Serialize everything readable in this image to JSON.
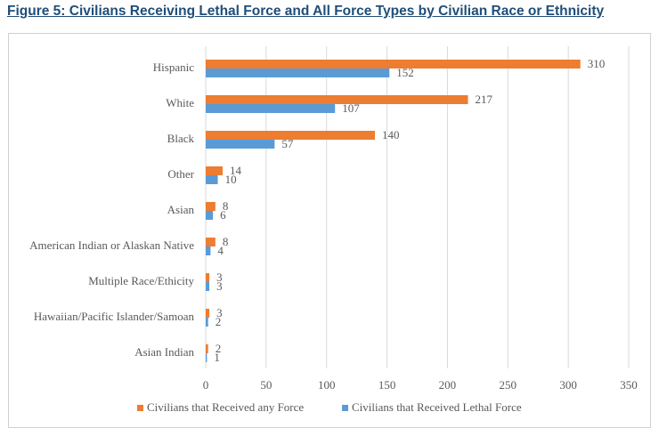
{
  "figure_title": "Figure 5: Civilians Receiving Lethal Force and All Force Types by Civilian Race or Ethnicity",
  "colors": {
    "any_force": "#ed7d31",
    "lethal_force": "#5b9bd5",
    "gridline": "#d9d9d9",
    "text": "#595959",
    "title": "#1f4e79"
  },
  "chart_data": {
    "type": "bar",
    "orientation": "horizontal",
    "title": "",
    "xlabel": "",
    "ylabel": "",
    "categories": [
      "Hispanic",
      "White",
      "Black",
      "Other",
      "Asian",
      "American Indian or Alaskan Native",
      "Multiple Race/Ethicity",
      "Hawaiian/Pacific Islander/Samoan",
      "Asian Indian"
    ],
    "series": [
      {
        "name": "Civilians that Received any Force",
        "values": [
          310,
          217,
          140,
          14,
          8,
          8,
          3,
          3,
          2
        ]
      },
      {
        "name": "Civilians that Received Lethal Force",
        "values": [
          152,
          107,
          57,
          10,
          6,
          4,
          3,
          2,
          1
        ]
      }
    ],
    "xlim": [
      0,
      350
    ],
    "x_ticks": [
      0,
      50,
      100,
      150,
      200,
      250,
      300,
      350
    ],
    "grid": "vertical",
    "data_labels": true,
    "legend_position": "bottom"
  }
}
